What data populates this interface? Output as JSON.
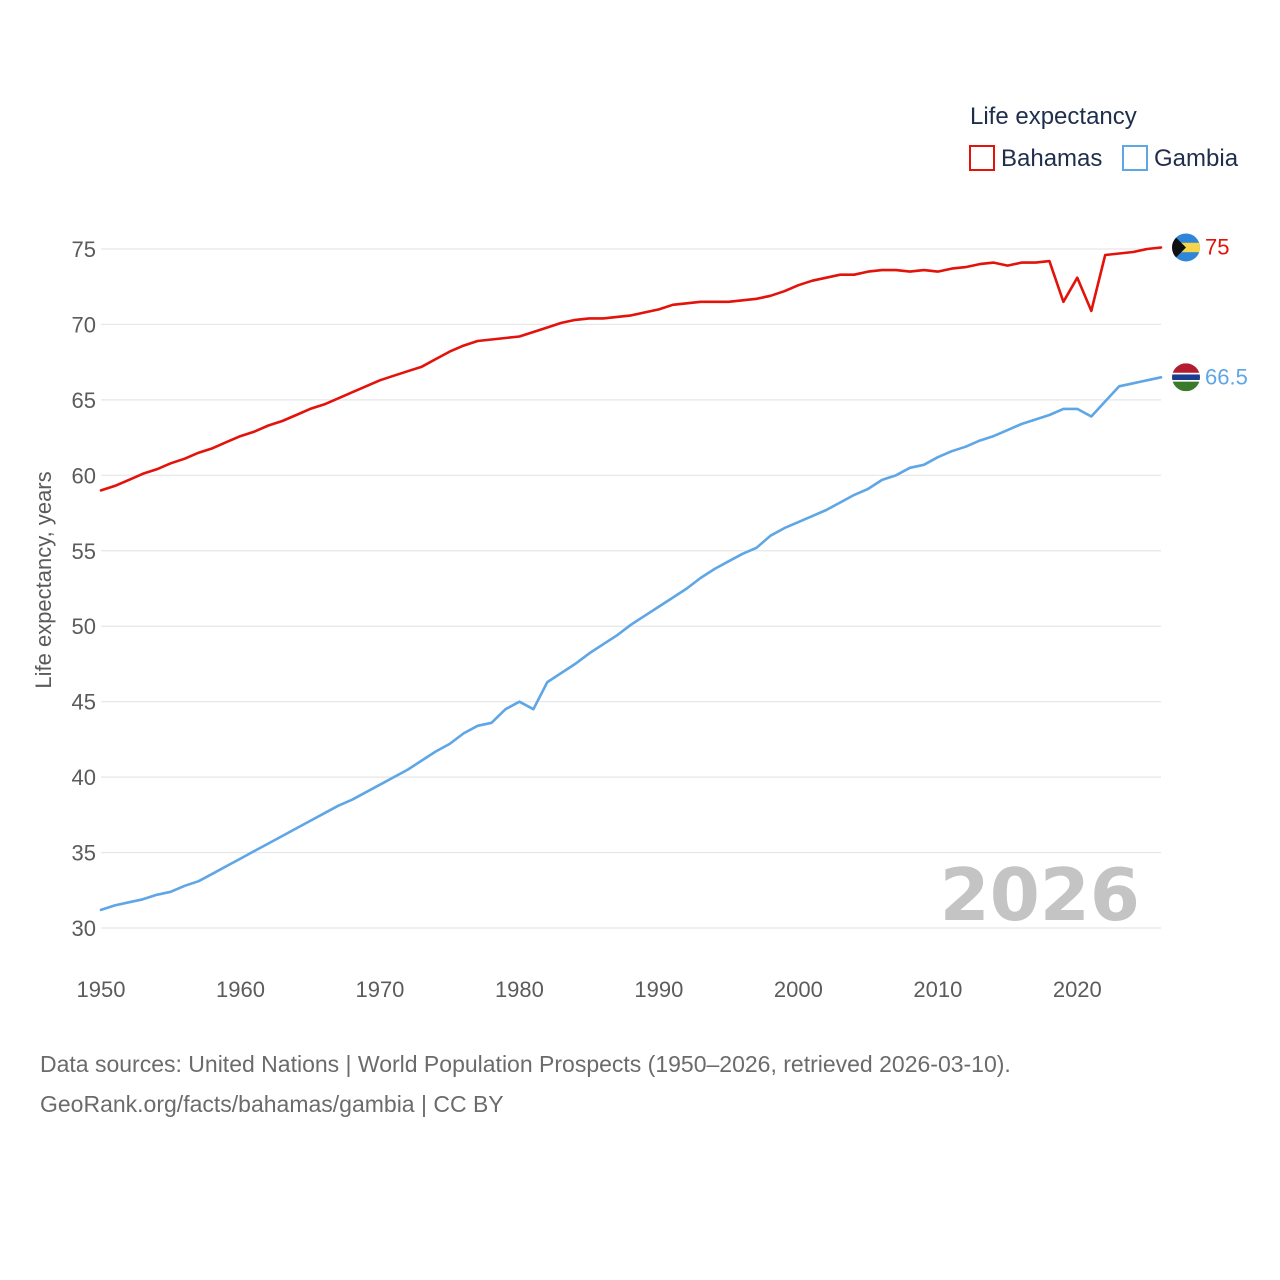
{
  "chart_data": {
    "type": "line",
    "legend_title": "Life expectancy",
    "ylabel": "Life expectancy, years",
    "xlabel": "",
    "xlim": [
      1950,
      2026
    ],
    "ylim": [
      30,
      75
    ],
    "x_ticks": [
      1950,
      1960,
      1970,
      1980,
      1990,
      2000,
      2010,
      2020
    ],
    "y_ticks": [
      30,
      35,
      40,
      45,
      50,
      55,
      60,
      65,
      70,
      75
    ],
    "current_year": "2026",
    "legend_position": "top-right",
    "x": [
      1950,
      1951,
      1952,
      1953,
      1954,
      1955,
      1956,
      1957,
      1958,
      1959,
      1960,
      1961,
      1962,
      1963,
      1964,
      1965,
      1966,
      1967,
      1968,
      1969,
      1970,
      1971,
      1972,
      1973,
      1974,
      1975,
      1976,
      1977,
      1978,
      1979,
      1980,
      1981,
      1982,
      1983,
      1984,
      1985,
      1986,
      1987,
      1988,
      1989,
      1990,
      1991,
      1992,
      1993,
      1994,
      1995,
      1996,
      1997,
      1998,
      1999,
      2000,
      2001,
      2002,
      2003,
      2004,
      2005,
      2006,
      2007,
      2008,
      2009,
      2010,
      2011,
      2012,
      2013,
      2014,
      2015,
      2016,
      2017,
      2018,
      2019,
      2020,
      2021,
      2022,
      2023,
      2024,
      2025,
      2026
    ],
    "series": [
      {
        "name": "Bahamas",
        "color": "#e3120b",
        "end_label": "75",
        "flag_icon": "bahamas-flag-icon",
        "values": [
          59.0,
          59.3,
          59.7,
          60.1,
          60.4,
          60.8,
          61.1,
          61.5,
          61.8,
          62.2,
          62.6,
          62.9,
          63.3,
          63.6,
          64.0,
          64.4,
          64.7,
          65.1,
          65.5,
          65.9,
          66.3,
          66.6,
          66.9,
          67.2,
          67.7,
          68.2,
          68.6,
          68.9,
          69.0,
          69.1,
          69.2,
          69.5,
          69.8,
          70.1,
          70.3,
          70.4,
          70.4,
          70.5,
          70.6,
          70.8,
          71.0,
          71.3,
          71.4,
          71.5,
          71.5,
          71.5,
          71.6,
          71.7,
          71.9,
          72.2,
          72.6,
          72.9,
          73.1,
          73.3,
          73.3,
          73.5,
          73.6,
          73.6,
          73.5,
          73.6,
          73.5,
          73.7,
          73.8,
          74.0,
          74.1,
          73.9,
          74.1,
          74.1,
          74.2,
          71.5,
          73.1,
          70.9,
          74.6,
          74.7,
          74.8,
          75.0,
          75.1
        ]
      },
      {
        "name": "Gambia",
        "color": "#5ea6e5",
        "end_label": "66.5",
        "flag_icon": "gambia-flag-icon",
        "values": [
          31.2,
          31.5,
          31.7,
          31.9,
          32.2,
          32.4,
          32.8,
          33.1,
          33.6,
          34.1,
          34.6,
          35.1,
          35.6,
          36.1,
          36.6,
          37.1,
          37.6,
          38.1,
          38.5,
          39.0,
          39.5,
          40.0,
          40.5,
          41.1,
          41.7,
          42.2,
          42.9,
          43.4,
          43.6,
          44.5,
          45.0,
          44.5,
          46.3,
          46.9,
          47.5,
          48.2,
          48.8,
          49.4,
          50.1,
          50.7,
          51.3,
          51.9,
          52.5,
          53.2,
          53.8,
          54.3,
          54.8,
          55.2,
          56.0,
          56.5,
          56.9,
          57.3,
          57.7,
          58.2,
          58.7,
          59.1,
          59.7,
          60.0,
          60.5,
          60.7,
          61.2,
          61.6,
          61.9,
          62.3,
          62.6,
          63.0,
          63.4,
          63.7,
          64.0,
          64.4,
          64.4,
          63.9,
          64.9,
          65.9,
          66.1,
          66.3,
          66.5
        ]
      }
    ]
  },
  "footer": {
    "sources_line": "Data sources: United Nations | World Population Prospects (1950–2026, retrieved 2026-03-10).",
    "attribution_line": "GeoRank.org/facts/bahamas/gambia | CC BY"
  }
}
